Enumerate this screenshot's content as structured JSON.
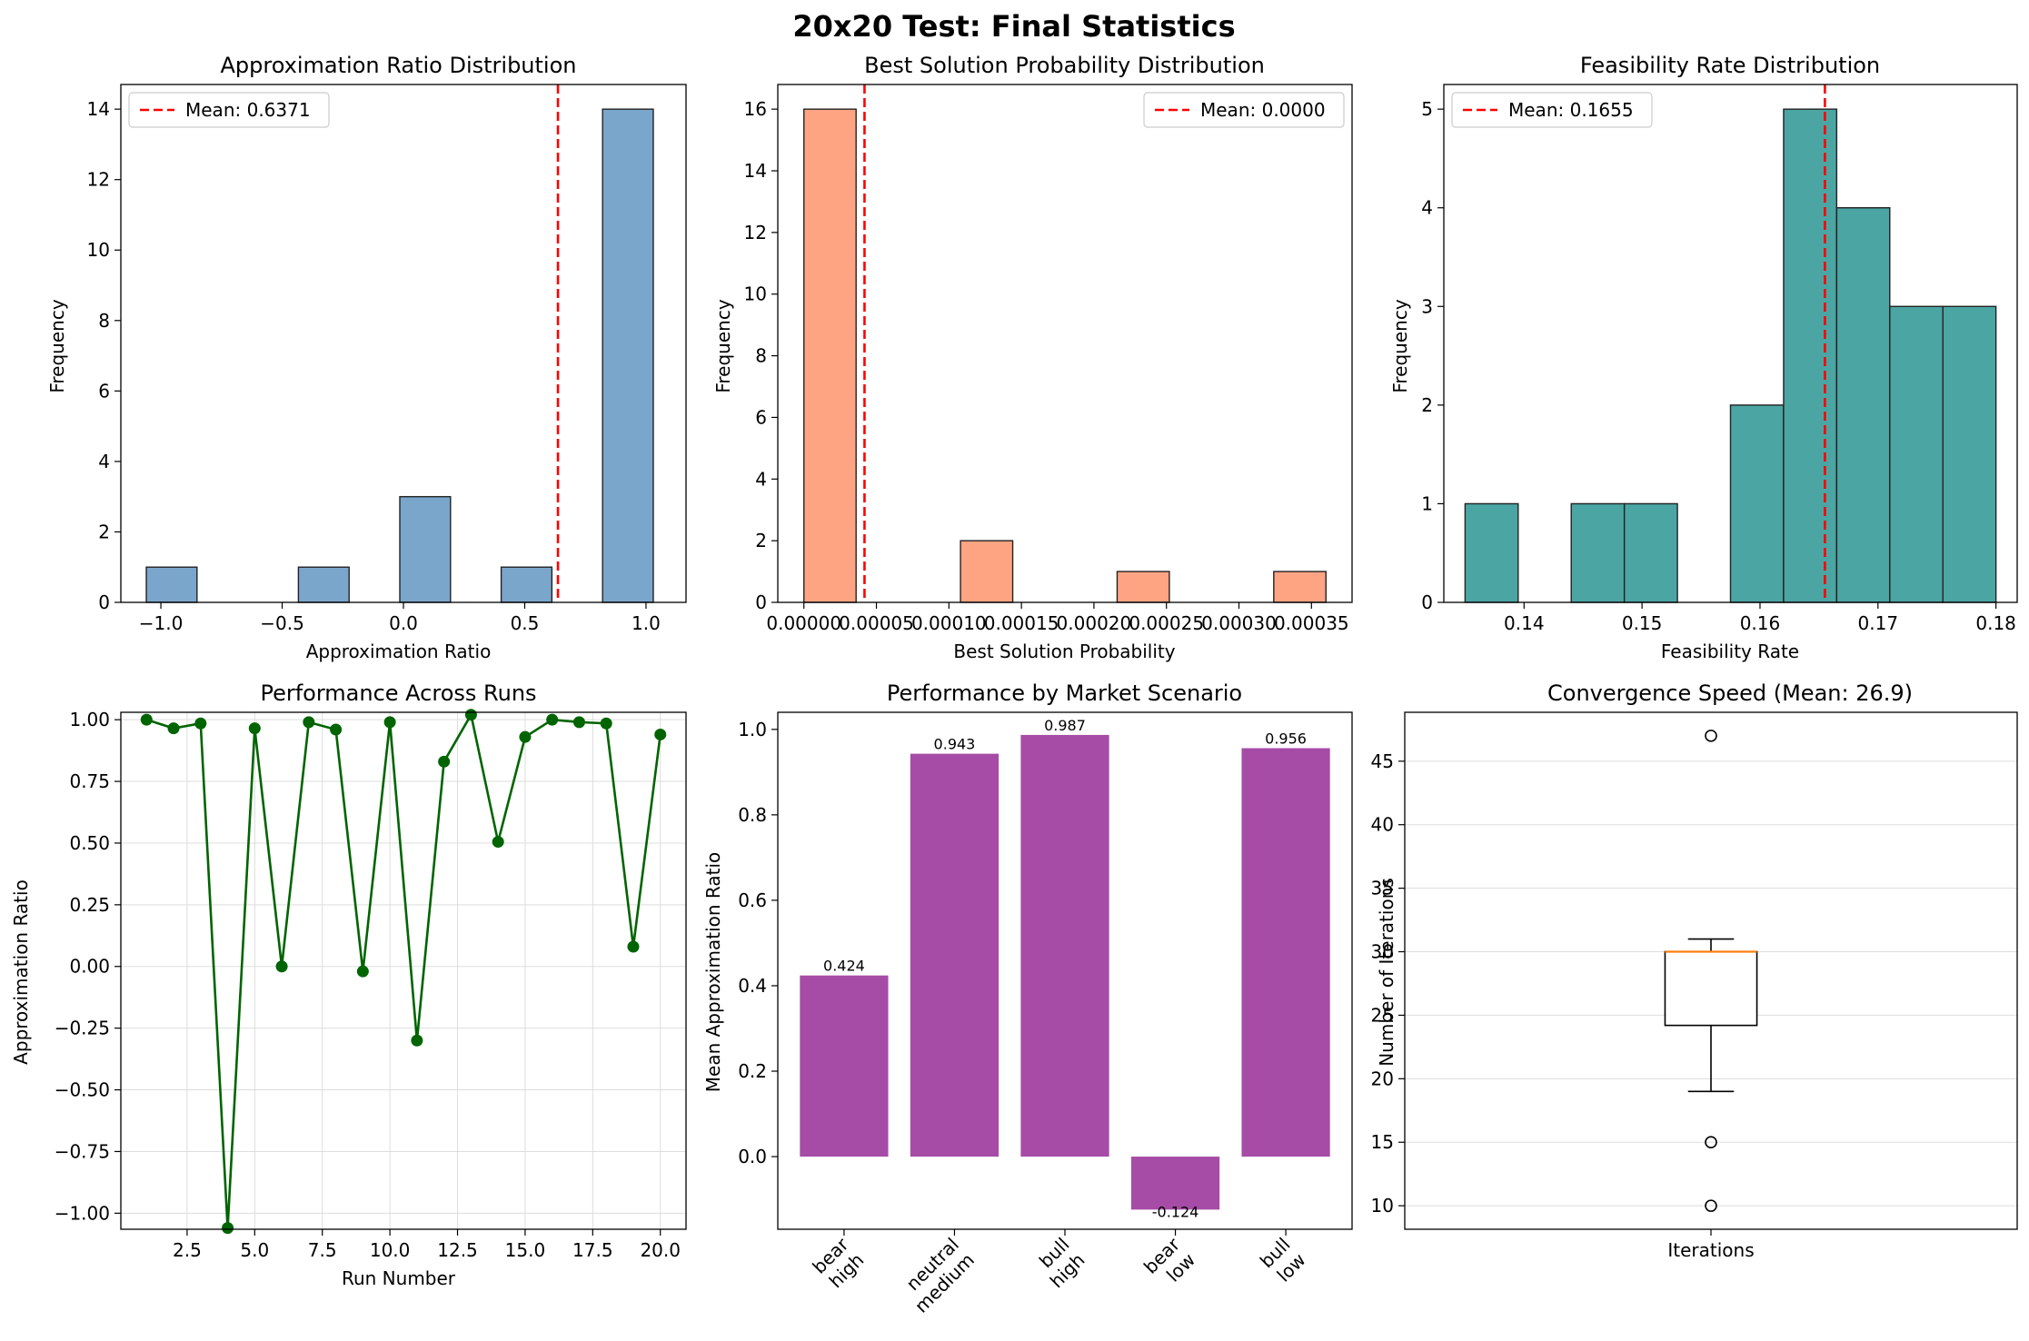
{
  "figure": {
    "title": "20x20 Test: Final Statistics"
  },
  "chart_data": [
    {
      "id": "p1",
      "type": "bar",
      "title": "Approximation Ratio Distribution",
      "xlabel": "Approximation Ratio",
      "ylabel": "Frequency",
      "xlim": [
        -1.165,
        1.165
      ],
      "ylim": [
        0,
        14.7
      ],
      "xticks": [
        -1.0,
        -0.5,
        0.0,
        0.5,
        1.0
      ],
      "xtick_labels": [
        "−1.0",
        "−0.5",
        "0.0",
        "0.5",
        "1.0"
      ],
      "yticks": [
        0,
        2,
        4,
        6,
        8,
        10,
        12,
        14
      ],
      "ytick_labels": [
        "0",
        "2",
        "4",
        "6",
        "8",
        "10",
        "12",
        "14"
      ],
      "bin_edges": [
        -1.06,
        -0.851,
        -0.642,
        -0.433,
        -0.224,
        -0.015,
        0.194,
        0.403,
        0.612,
        0.821,
        1.03
      ],
      "counts": [
        1,
        0,
        0,
        1,
        0,
        3,
        0,
        1,
        0,
        14
      ],
      "color": "#7ba6cb",
      "mean_line": {
        "value": 0.6371,
        "label": "Mean: 0.6371",
        "color": "#ff0000"
      },
      "legend": "top-left"
    },
    {
      "id": "p2",
      "type": "bar",
      "title": "Best Solution Probability Distribution",
      "xlabel": "Best Solution Probability",
      "ylabel": "Frequency",
      "xlim": [
        -1.8e-05,
        0.000378
      ],
      "ylim": [
        0,
        16.8
      ],
      "xticks": [
        0.0,
        5e-05,
        0.0001,
        0.00015,
        0.0002,
        0.00025,
        0.0003,
        0.00035
      ],
      "xtick_labels": [
        "0.00000",
        "0.00005",
        "0.00010",
        "0.00015",
        "0.00020",
        "0.00025",
        "0.00030",
        "0.00035"
      ],
      "yticks": [
        0,
        2,
        4,
        6,
        8,
        10,
        12,
        14,
        16
      ],
      "ytick_labels": [
        "0",
        "2",
        "4",
        "6",
        "8",
        "10",
        "12",
        "14",
        "16"
      ],
      "bin_edges": [
        0.0,
        3.6e-05,
        7.2e-05,
        0.000108,
        0.000144,
        0.00018,
        0.000216,
        0.000252,
        0.000288,
        0.000324,
        0.00036
      ],
      "counts": [
        16,
        0,
        0,
        2,
        0,
        0,
        1,
        0,
        0,
        1
      ],
      "color": "#ffa483",
      "mean_line": {
        "value": 4.18e-05,
        "label": "Mean: 0.0000",
        "color": "#ff0000"
      },
      "legend": "top-right"
    },
    {
      "id": "p3",
      "type": "bar",
      "title": "Feasibility Rate Distribution",
      "xlabel": "Feasibility Rate",
      "ylabel": "Frequency",
      "xlim": [
        0.1332,
        0.1818
      ],
      "ylim": [
        0,
        5.25
      ],
      "xticks": [
        0.14,
        0.15,
        0.16,
        0.17,
        0.18
      ],
      "xtick_labels": [
        "0.14",
        "0.15",
        "0.16",
        "0.17",
        "0.18"
      ],
      "yticks": [
        0,
        1,
        2,
        3,
        4,
        5
      ],
      "ytick_labels": [
        "0",
        "1",
        "2",
        "3",
        "4",
        "5"
      ],
      "bin_edges": [
        0.135,
        0.1395,
        0.144,
        0.1485,
        0.153,
        0.1575,
        0.162,
        0.1665,
        0.171,
        0.1755,
        0.18
      ],
      "counts": [
        1,
        0,
        1,
        1,
        0,
        2,
        5,
        4,
        3,
        3
      ],
      "color": "#4ba5a3",
      "mean_line": {
        "value": 0.1655,
        "label": "Mean: 0.1655",
        "color": "#ff0000"
      },
      "legend": "top-left"
    },
    {
      "id": "p4",
      "type": "line",
      "title": "Performance Across Runs",
      "xlabel": "Run Number",
      "ylabel": "Approximation Ratio",
      "xlim": [
        0.05,
        20.95
      ],
      "ylim": [
        -1.065,
        1.03
      ],
      "xticks": [
        2.5,
        5.0,
        7.5,
        10.0,
        12.5,
        15.0,
        17.5,
        20.0
      ],
      "xtick_labels": [
        "2.5",
        "5.0",
        "7.5",
        "10.0",
        "12.5",
        "15.0",
        "17.5",
        "20.0"
      ],
      "yticks": [
        -1.0,
        -0.75,
        -0.5,
        -0.25,
        0.0,
        0.25,
        0.5,
        0.75,
        1.0
      ],
      "ytick_labels": [
        "−1.00",
        "−0.75",
        "−0.50",
        "−0.25",
        "0.00",
        "0.25",
        "0.50",
        "0.75",
        "1.00"
      ],
      "x": [
        1,
        2,
        3,
        4,
        5,
        6,
        7,
        8,
        9,
        10,
        11,
        12,
        13,
        14,
        15,
        16,
        17,
        18,
        19,
        20
      ],
      "y": [
        1.0,
        0.965,
        0.985,
        -1.06,
        0.965,
        0.0,
        0.99,
        0.96,
        -0.02,
        0.99,
        -0.3,
        0.83,
        1.02,
        0.505,
        0.93,
        1.0,
        0.99,
        0.985,
        0.08,
        0.94
      ],
      "color": "#006400",
      "grid": true
    },
    {
      "id": "p5",
      "type": "bar",
      "title": "Performance by Market Scenario",
      "xlabel": "",
      "ylabel": "Mean Approximation Ratio",
      "xlim": [
        -0.6,
        4.6
      ],
      "ylim": [
        -0.17,
        1.04
      ],
      "yticks": [
        0.0,
        0.2,
        0.4,
        0.6,
        0.8,
        1.0
      ],
      "ytick_labels": [
        "0.0",
        "0.2",
        "0.4",
        "0.6",
        "0.8",
        "1.0"
      ],
      "categories": [
        [
          "bear",
          "high"
        ],
        [
          "neutral",
          "medium"
        ],
        [
          "bull",
          "high"
        ],
        [
          "bear",
          "low"
        ],
        [
          "bull",
          "low"
        ]
      ],
      "values": [
        0.424,
        0.943,
        0.987,
        -0.124,
        0.956
      ],
      "value_labels": [
        "0.424",
        "0.943",
        "0.987",
        "-0.124",
        "0.956"
      ],
      "color": "#a64ca6"
    },
    {
      "id": "p6",
      "type": "box",
      "title": "Convergence Speed (Mean: 26.9)",
      "xlabel": "",
      "ylabel": "Number of Iterations",
      "xlim": [
        0.5,
        1.5
      ],
      "ylim": [
        8.15,
        48.85
      ],
      "yticks": [
        10,
        15,
        20,
        25,
        30,
        35,
        40,
        45
      ],
      "ytick_labels": [
        "10",
        "15",
        "20",
        "25",
        "30",
        "35",
        "40",
        "45"
      ],
      "categories": [
        "Iterations"
      ],
      "box": {
        "whisker_low": 19,
        "q1": 24.2,
        "median": 30,
        "q3": 30,
        "whisker_high": 31,
        "outliers": [
          47,
          15,
          10
        ]
      },
      "median_color": "#ff7f0e",
      "grid": true
    }
  ]
}
